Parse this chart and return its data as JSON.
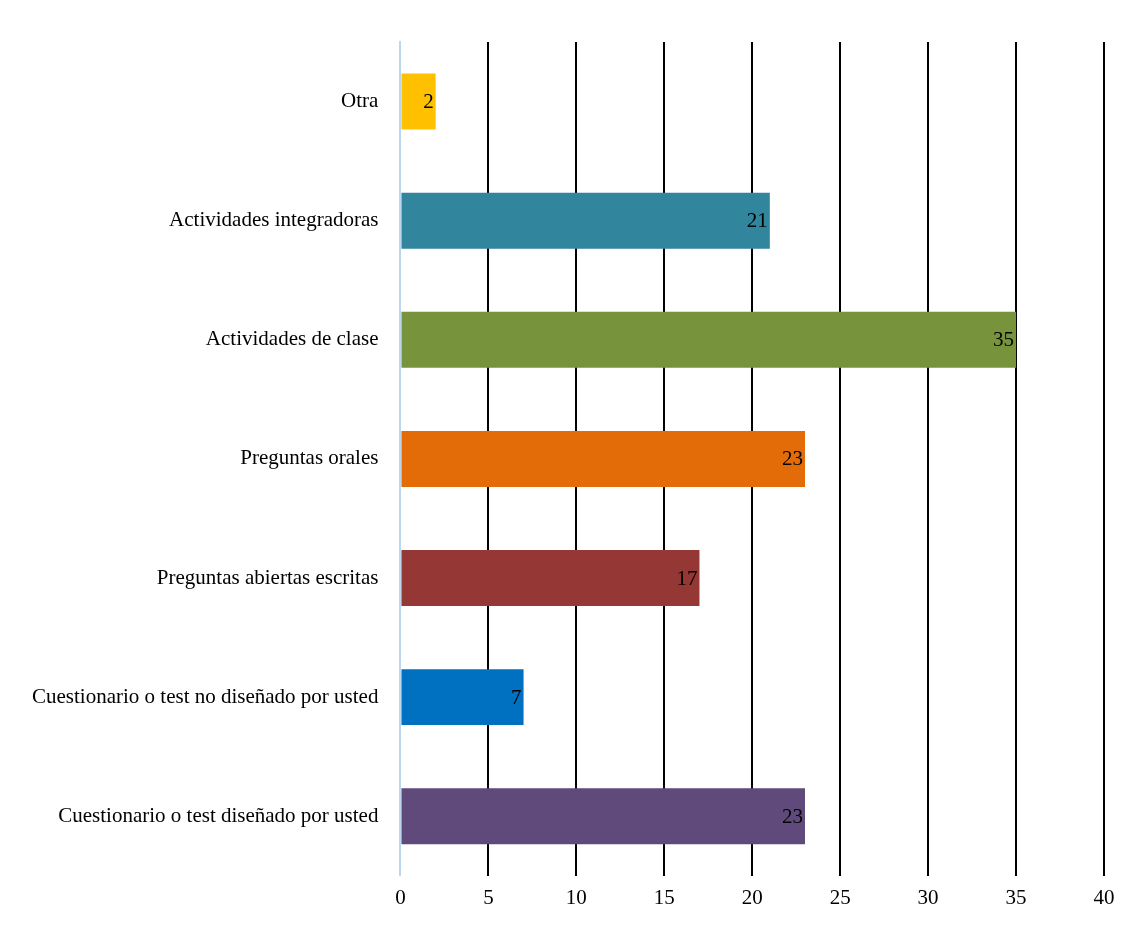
{
  "chart_data": {
    "type": "bar",
    "orientation": "horizontal",
    "categories": [
      "Otra",
      "Actividades integradoras",
      "Actividades de clase",
      "Preguntas orales",
      "Preguntas abiertas escritas",
      "Cuestionario o test no diseñado por usted",
      "Cuestionario o test diseñado por usted"
    ],
    "values": [
      2,
      21,
      35,
      23,
      17,
      7,
      23
    ],
    "colors": [
      "#ffc000",
      "#31859c",
      "#77933c",
      "#e36c09",
      "#953735",
      "#0070c0",
      "#604a7b"
    ],
    "xlim": [
      0,
      40
    ],
    "xticks": [
      0,
      5,
      10,
      15,
      20,
      25,
      30,
      35,
      40
    ],
    "grid": "x",
    "legend": false,
    "data_labels": true
  }
}
